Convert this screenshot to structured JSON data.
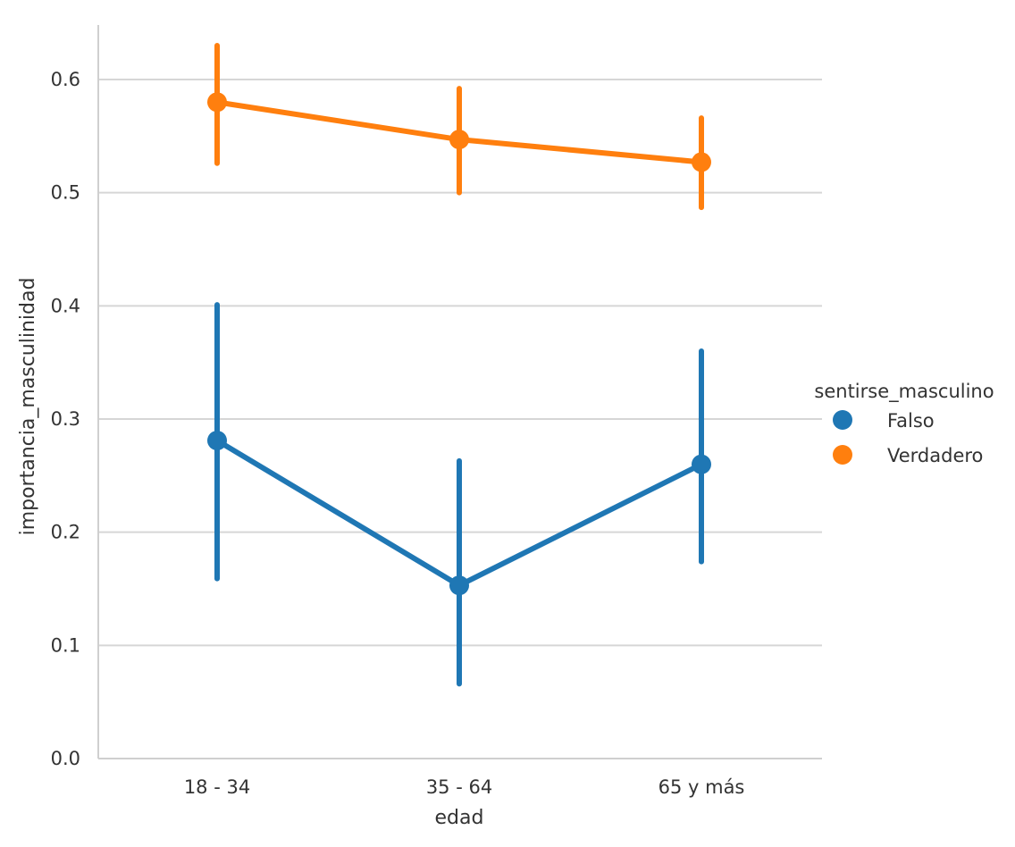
{
  "chart_data": {
    "type": "line",
    "subtype": "point-plot-with-error-bars",
    "title": "",
    "xlabel": "edad",
    "ylabel": "importancia_masculinidad",
    "categories": [
      "18 - 34",
      "35 - 64",
      "65 y más"
    ],
    "ylim": [
      0.0,
      0.65
    ],
    "yticks": [
      0.0,
      0.1,
      0.2,
      0.3,
      0.4,
      0.5,
      0.6
    ],
    "ytick_labels": [
      "0.0",
      "0.1",
      "0.2",
      "0.3",
      "0.4",
      "0.5",
      "0.6"
    ],
    "grid": "horizontal",
    "legend": {
      "title": "sentirse_masculino",
      "placement": "right"
    },
    "series": [
      {
        "name": "Falso",
        "color": "#1f77b4",
        "values": [
          0.281,
          0.153,
          0.26
        ],
        "ci_low": [
          0.159,
          0.066,
          0.174
        ],
        "ci_high": [
          0.401,
          0.263,
          0.36
        ]
      },
      {
        "name": "Verdadero",
        "color": "#ff7f0e",
        "values": [
          0.58,
          0.547,
          0.527
        ],
        "ci_low": [
          0.526,
          0.5,
          0.487
        ],
        "ci_high": [
          0.63,
          0.592,
          0.566
        ]
      }
    ]
  }
}
